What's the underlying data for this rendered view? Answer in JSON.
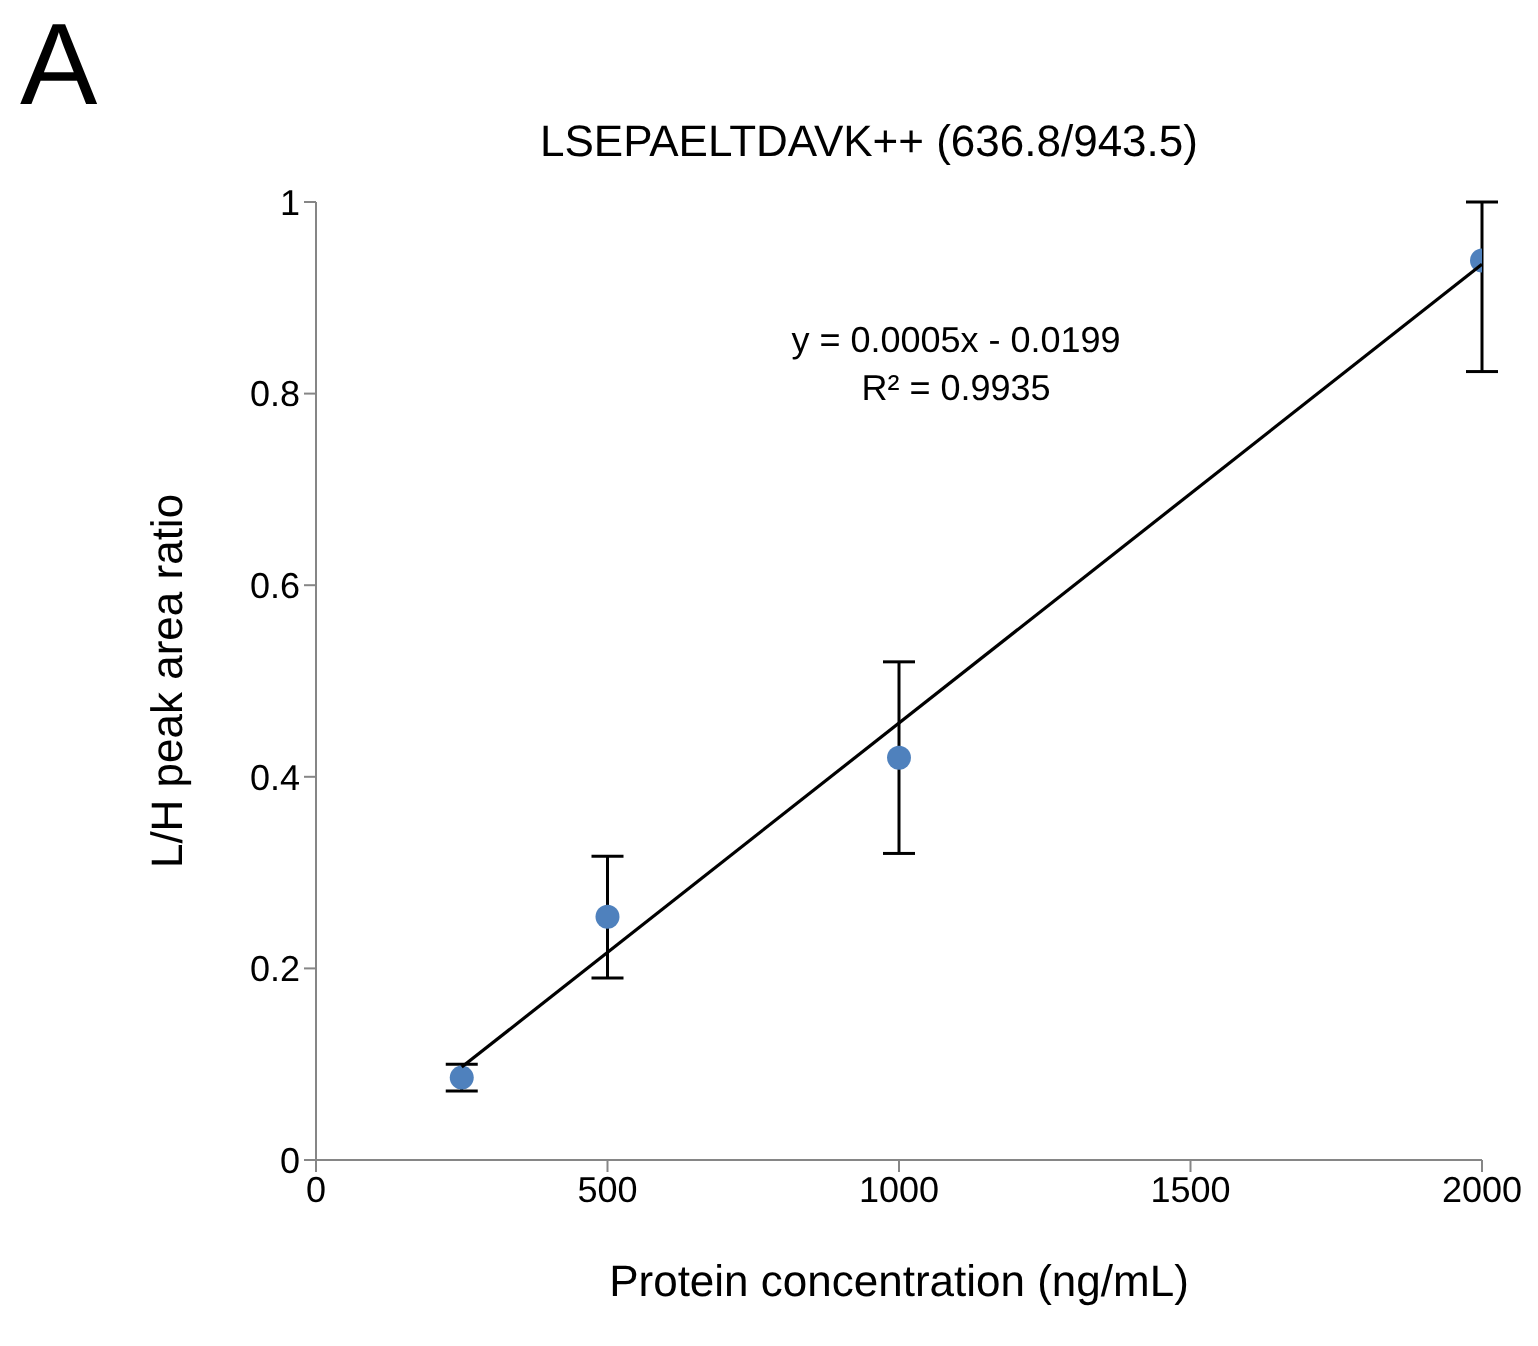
{
  "chart_data": {
    "type": "scatter",
    "title": "LSEPAELTDAVK++ (636.8/943.5)",
    "xlabel": "Protein concentration (ng/mL)",
    "ylabel": "L/H peak area ratio",
    "annotations": [
      "A",
      "y = 0.0005x - 0.0199",
      "R² = 0.9935"
    ],
    "series": [
      {
        "color": "#4f81bd",
        "x": [
          250,
          500,
          1000,
          2000
        ],
        "values": [
          0.086,
          0.254,
          0.42,
          0.939
        ],
        "errors": [
          [
            0.072,
            0.1
          ],
          [
            0.19,
            0.317
          ],
          [
            0.32,
            0.52
          ],
          [
            0.823,
            1.0
          ]
        ]
      },
      {
        "type": "line",
        "marker": "none",
        "color": "#000000",
        "x": [
          250,
          2000
        ],
        "values": [
          0.097,
          0.935
        ]
      }
    ],
    "xlim": [
      0,
      2000
    ],
    "xticks": [
      0,
      500,
      1000,
      1500,
      2000
    ],
    "ylim": [
      0,
      1
    ],
    "yticks": [
      0,
      0.2,
      0.4,
      0.6,
      0.8,
      1
    ],
    "grid": false,
    "legend": false,
    "marker": "circle",
    "line_style": "solid"
  }
}
